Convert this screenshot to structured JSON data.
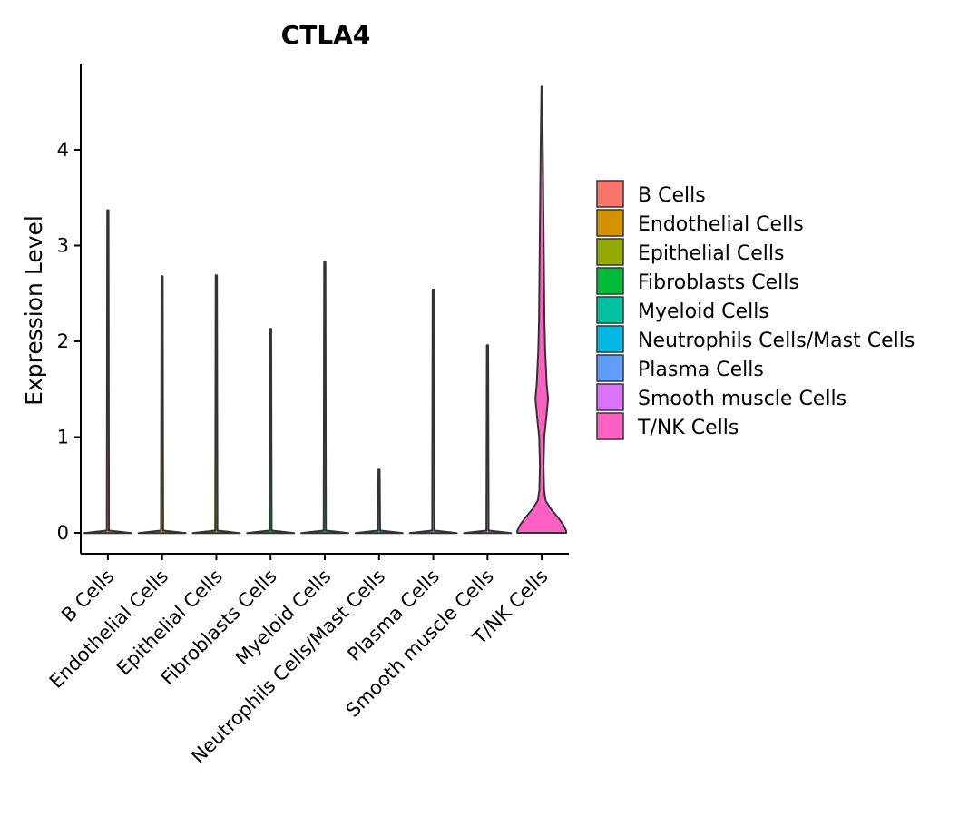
{
  "chart_data": {
    "type": "violin",
    "title": "CTLA4",
    "xlabel": "",
    "ylabel": "Expression Level",
    "ylim": [
      -0.24,
      4.9
    ],
    "yticks": [
      0,
      1,
      2,
      3,
      4
    ],
    "categories": [
      "B Cells",
      "Endothelial Cells",
      "Epithelial Cells",
      "Fibroblasts Cells",
      "Myeloid Cells",
      "Neutrophils Cells/Mast Cells",
      "Plasma Cells",
      "Smooth muscle Cells",
      "T/NK Cells"
    ],
    "max_values": [
      3.37,
      2.68,
      2.69,
      2.13,
      2.83,
      0.66,
      2.54,
      1.96,
      4.66
    ],
    "colors": [
      "#F8766D",
      "#D39200",
      "#93AA00",
      "#00BA38",
      "#00C19F",
      "#00B9E3",
      "#619CFF",
      "#DB72FB",
      "#FF61C3"
    ],
    "legend": {
      "position": "right",
      "entries": [
        "B Cells",
        "Endothelial Cells",
        "Epithelial Cells",
        "Fibroblasts Cells",
        "Myeloid Cells",
        "Neutrophils Cells/Mast Cells",
        "Plasma Cells",
        "Smooth muscle Cells",
        "T/NK Cells"
      ]
    }
  }
}
